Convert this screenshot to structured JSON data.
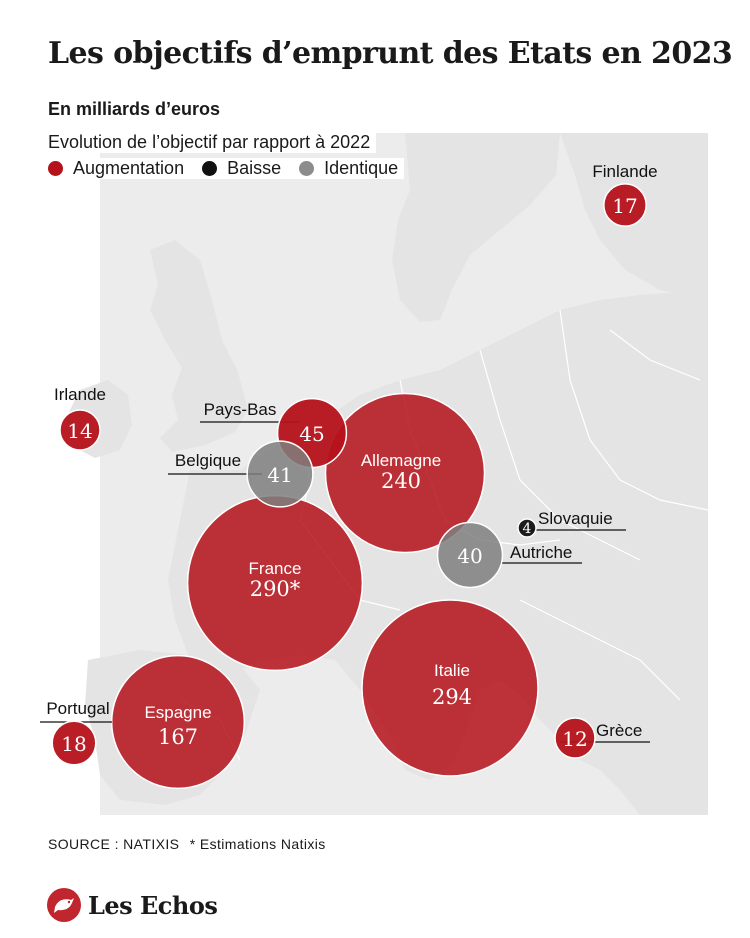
{
  "title": "Les objectifs d’emprunt des Etats en 2023",
  "subtitle": "En milliards d’euros",
  "legend": {
    "title": "Evolution de l’objectif par rapport à 2022",
    "items": [
      {
        "label": "Augmentation",
        "color": "#b5121b"
      },
      {
        "label": "Baisse",
        "color": "#111111"
      },
      {
        "label": "Identique",
        "color": "#8c8c8c"
      }
    ]
  },
  "colors": {
    "Augmentation": "#b5121b",
    "Baisse": "#111111",
    "Identique": "#7f7f7f",
    "map_land": "#e4e4e4",
    "map_sea": "#ffffff",
    "logo": "#c0262d"
  },
  "chart_data": {
    "type": "bubble-map",
    "units": "milliards d’euros",
    "points": [
      {
        "country": "Finlande",
        "value": 17,
        "value_label": "17",
        "change": "Augmentation"
      },
      {
        "country": "Irlande",
        "value": 14,
        "value_label": "14",
        "change": "Augmentation"
      },
      {
        "country": "Pays-Bas",
        "value": 45,
        "value_label": "45",
        "change": "Augmentation"
      },
      {
        "country": "Belgique",
        "value": 41,
        "value_label": "41",
        "change": "Identique"
      },
      {
        "country": "Allemagne",
        "value": 240,
        "value_label": "240",
        "change": "Augmentation"
      },
      {
        "country": "France",
        "value": 290,
        "value_label": "290*",
        "change": "Augmentation"
      },
      {
        "country": "Slovaquie",
        "value": 4,
        "value_label": "4",
        "change": "Baisse"
      },
      {
        "country": "Autriche",
        "value": 40,
        "value_label": "40",
        "change": "Identique"
      },
      {
        "country": "Italie",
        "value": 294,
        "value_label": "294",
        "change": "Augmentation"
      },
      {
        "country": "Espagne",
        "value": 167,
        "value_label": "167",
        "change": "Augmentation"
      },
      {
        "country": "Portugal",
        "value": 18,
        "value_label": "18",
        "change": "Augmentation"
      },
      {
        "country": "Grèce",
        "value": 12,
        "value_label": "12",
        "change": "Augmentation"
      }
    ]
  },
  "footer": {
    "source": "SOURCE : NATIXIS",
    "note": "* Estimations Natixis"
  },
  "brand": {
    "logo_text": "Les Echos",
    "logo_icon": "les-echos-rooster-icon"
  }
}
